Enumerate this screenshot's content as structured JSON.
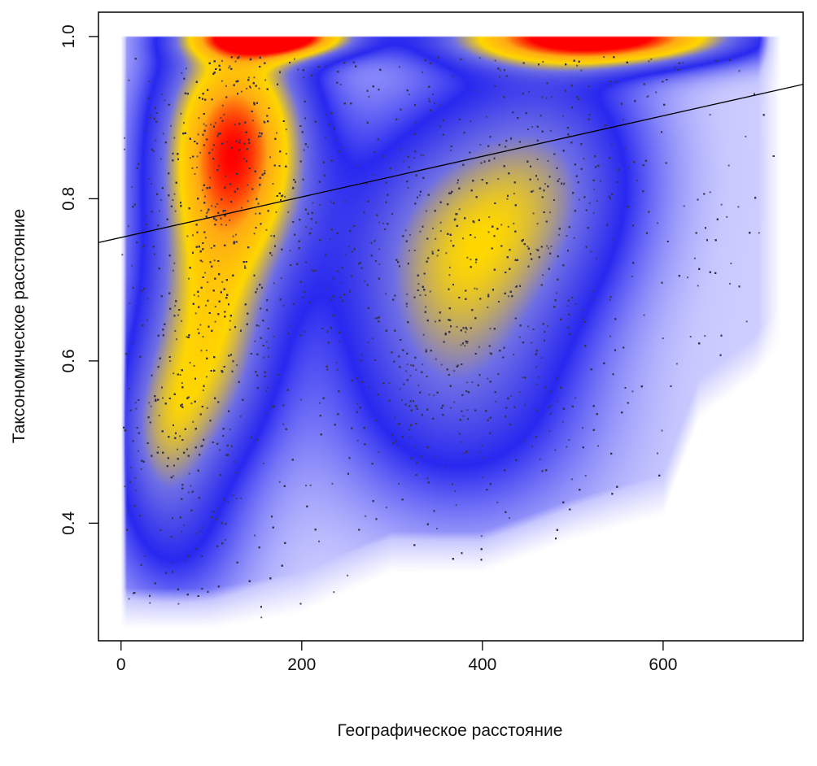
{
  "chart_data": {
    "type": "scatter",
    "title": "",
    "xlabel": "Географическое расстояние",
    "ylabel": "Таксономическое расстояние",
    "xlim": [
      -25,
      755
    ],
    "ylim": [
      0.255,
      1.03
    ],
    "x_ticks": [
      {
        "value": 0,
        "label": "0"
      },
      {
        "value": 200,
        "label": "200"
      },
      {
        "value": 400,
        "label": "400"
      },
      {
        "value": 600,
        "label": "600"
      }
    ],
    "y_ticks": [
      {
        "value": 0.4,
        "label": "0.4"
      },
      {
        "value": 0.6,
        "label": "0.6"
      },
      {
        "value": 0.8,
        "label": "0.8"
      },
      {
        "value": 1.0,
        "label": "1.0"
      }
    ],
    "density_scale": {
      "colors": [
        "#ffffff",
        "#0000ff",
        "#ffd700",
        "#ff0000"
      ]
    },
    "density_clusters": [
      {
        "x": 125,
        "y": 0.87,
        "sx": 60,
        "sy": 0.11,
        "weight": 1.0
      },
      {
        "x": 95,
        "y": 0.62,
        "sx": 55,
        "sy": 0.12,
        "weight": 0.6
      },
      {
        "x": 40,
        "y": 0.5,
        "sx": 40,
        "sy": 0.08,
        "weight": 0.35
      },
      {
        "x": 360,
        "y": 0.72,
        "sx": 90,
        "sy": 0.13,
        "weight": 0.55
      },
      {
        "x": 480,
        "y": 0.83,
        "sx": 80,
        "sy": 0.12,
        "weight": 0.4
      },
      {
        "x": 380,
        "y": 0.52,
        "sx": 110,
        "sy": 0.1,
        "weight": 0.22
      },
      {
        "x": 60,
        "y": 0.36,
        "sx": 60,
        "sy": 0.07,
        "weight": 0.18
      },
      {
        "x": 170,
        "y": 1.0,
        "sx": 60,
        "sy": 0.018,
        "weight": 1.1
      },
      {
        "x": 530,
        "y": 1.0,
        "sx": 110,
        "sy": 0.025,
        "weight": 1.15
      }
    ],
    "regression_line": {
      "x": [
        -25,
        755
      ],
      "y": [
        0.746,
        0.941
      ]
    },
    "approx_point_count": 9000
  }
}
